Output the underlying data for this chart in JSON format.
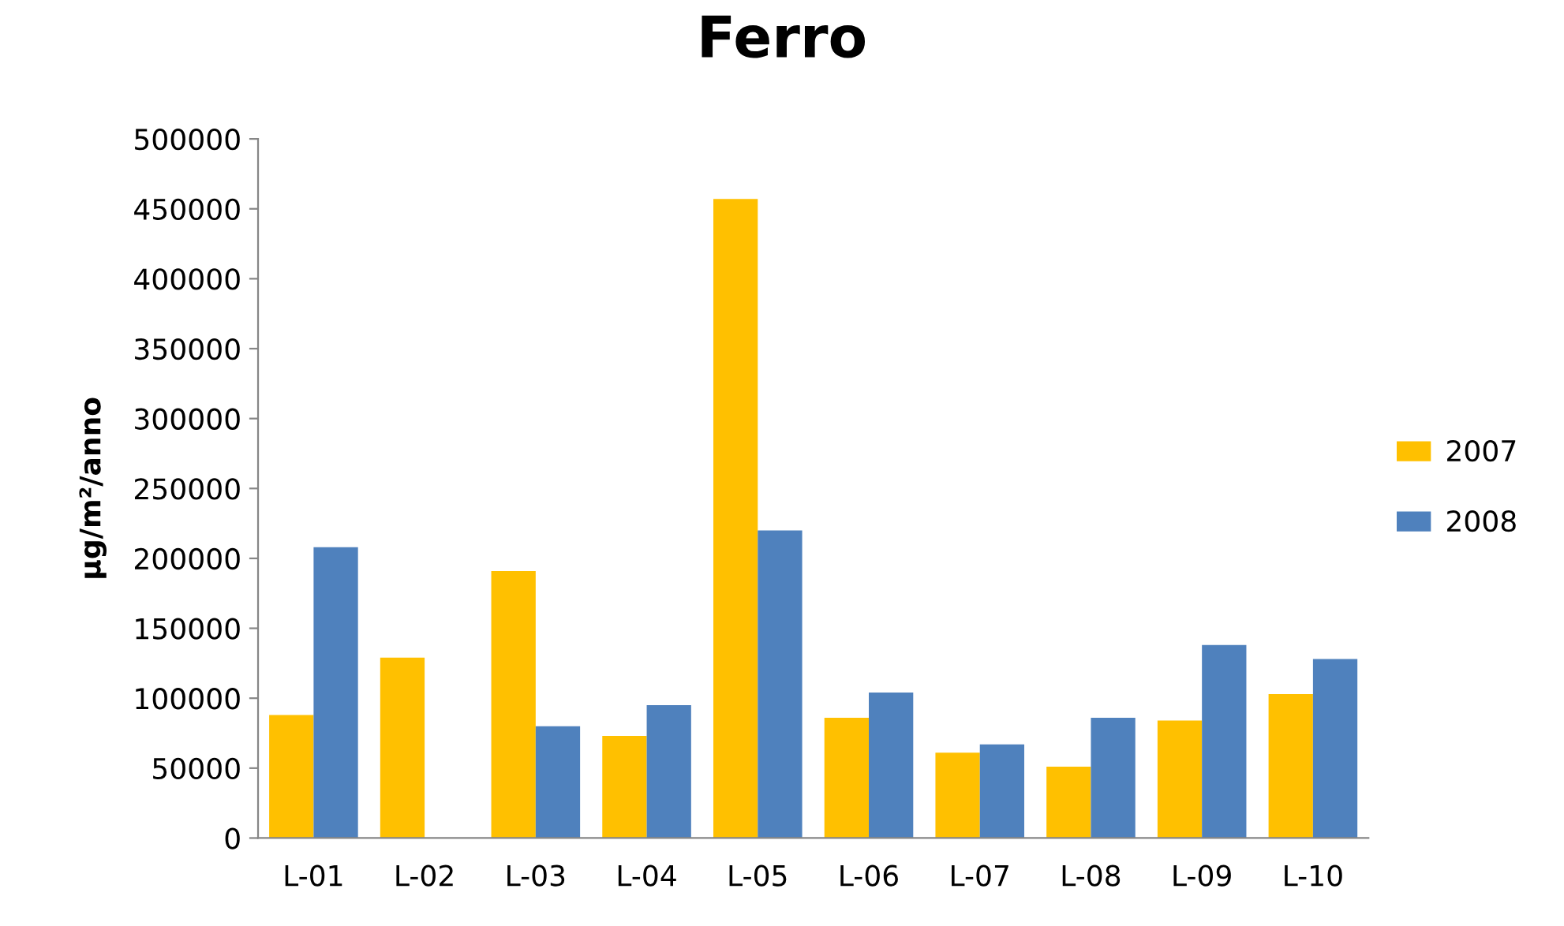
{
  "chart_data": {
    "type": "bar",
    "title": "Ferro",
    "ylabel": "µg/m²/anno",
    "categories": [
      "L-01",
      "L-02",
      "L-03",
      "L-04",
      "L-05",
      "L-06",
      "L-07",
      "L-08",
      "L-09",
      "L-10"
    ],
    "series": [
      {
        "name": "2007",
        "color": "#ffc000",
        "values": [
          88000,
          129000,
          191000,
          73000,
          457000,
          86000,
          61000,
          51000,
          84000,
          103000
        ]
      },
      {
        "name": "2008",
        "color": "#4f81bd",
        "values": [
          208000,
          null,
          80000,
          95000,
          220000,
          104000,
          67000,
          86000,
          138000,
          128000
        ]
      }
    ],
    "ylim": [
      0,
      500000
    ],
    "yticks": [
      0,
      50000,
      100000,
      150000,
      200000,
      250000,
      300000,
      350000,
      400000,
      450000,
      500000
    ],
    "grid": false,
    "legend": "right"
  }
}
